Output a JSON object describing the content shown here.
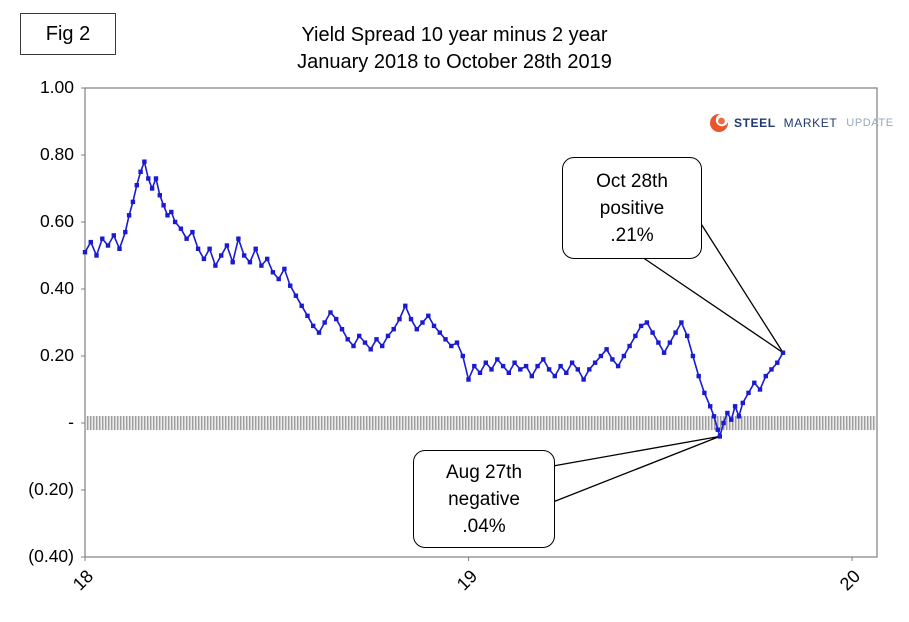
{
  "fig_label": "Fig 2",
  "title": {
    "line1": "Yield Spread 10 year minus 2 year",
    "line2": "January 2018 to October 28th 2019"
  },
  "logo": {
    "word1": "STEEL",
    "word2": "MARKET",
    "word3": "UPDATE",
    "orange": "#e8552b",
    "navy": "#1f3a6e",
    "gray": "#94a8bf"
  },
  "chart_data": {
    "type": "line",
    "title": "Yield Spread 10 year minus 2 year, January 2018 to October 28th 2019",
    "xlabel": "",
    "ylabel": "",
    "xlim": [
      18,
      20.065
    ],
    "ylim": [
      -0.4,
      1.0
    ],
    "grid": false,
    "legend": "none",
    "zero_band": true,
    "colors": {
      "line": "#1a1ad2",
      "band": "#9e9e9e"
    },
    "yticks": [
      {
        "label": "1.00",
        "value": 1.0
      },
      {
        "label": "0.80",
        "value": 0.8
      },
      {
        "label": "0.60",
        "value": 0.6
      },
      {
        "label": "0.40",
        "value": 0.4
      },
      {
        "label": "0.20",
        "value": 0.2
      },
      {
        "label": "-",
        "value": 0.0
      },
      {
        "label": "(0.20)",
        "value": -0.2
      },
      {
        "label": "(0.40)",
        "value": -0.4
      }
    ],
    "xticks": [
      {
        "label": "18",
        "value": 18
      },
      {
        "label": "19",
        "value": 19
      },
      {
        "label": "20",
        "value": 20
      }
    ],
    "series": [
      {
        "name": "Yield spread 10yr minus 2yr (%)",
        "marker": "square",
        "points": [
          [
            18.0,
            0.51
          ],
          [
            18.015,
            0.54
          ],
          [
            18.03,
            0.5
          ],
          [
            18.045,
            0.55
          ],
          [
            18.06,
            0.53
          ],
          [
            18.075,
            0.56
          ],
          [
            18.09,
            0.52
          ],
          [
            18.105,
            0.57
          ],
          [
            18.115,
            0.62
          ],
          [
            18.125,
            0.66
          ],
          [
            18.135,
            0.71
          ],
          [
            18.145,
            0.75
          ],
          [
            18.155,
            0.78
          ],
          [
            18.165,
            0.73
          ],
          [
            18.175,
            0.7
          ],
          [
            18.185,
            0.73
          ],
          [
            18.195,
            0.68
          ],
          [
            18.205,
            0.65
          ],
          [
            18.215,
            0.62
          ],
          [
            18.225,
            0.63
          ],
          [
            18.235,
            0.6
          ],
          [
            18.25,
            0.58
          ],
          [
            18.265,
            0.55
          ],
          [
            18.28,
            0.57
          ],
          [
            18.295,
            0.52
          ],
          [
            18.31,
            0.49
          ],
          [
            18.325,
            0.52
          ],
          [
            18.34,
            0.47
          ],
          [
            18.355,
            0.5
          ],
          [
            18.37,
            0.53
          ],
          [
            18.385,
            0.48
          ],
          [
            18.4,
            0.55
          ],
          [
            18.415,
            0.5
          ],
          [
            18.43,
            0.48
          ],
          [
            18.445,
            0.52
          ],
          [
            18.46,
            0.47
          ],
          [
            18.475,
            0.49
          ],
          [
            18.49,
            0.45
          ],
          [
            18.505,
            0.43
          ],
          [
            18.52,
            0.46
          ],
          [
            18.535,
            0.41
          ],
          [
            18.55,
            0.38
          ],
          [
            18.565,
            0.35
          ],
          [
            18.58,
            0.32
          ],
          [
            18.595,
            0.29
          ],
          [
            18.61,
            0.27
          ],
          [
            18.625,
            0.3
          ],
          [
            18.64,
            0.33
          ],
          [
            18.655,
            0.31
          ],
          [
            18.67,
            0.28
          ],
          [
            18.685,
            0.25
          ],
          [
            18.7,
            0.23
          ],
          [
            18.715,
            0.26
          ],
          [
            18.73,
            0.24
          ],
          [
            18.745,
            0.22
          ],
          [
            18.76,
            0.25
          ],
          [
            18.775,
            0.23
          ],
          [
            18.79,
            0.26
          ],
          [
            18.805,
            0.28
          ],
          [
            18.82,
            0.31
          ],
          [
            18.835,
            0.35
          ],
          [
            18.85,
            0.31
          ],
          [
            18.865,
            0.28
          ],
          [
            18.88,
            0.3
          ],
          [
            18.895,
            0.32
          ],
          [
            18.91,
            0.29
          ],
          [
            18.925,
            0.27
          ],
          [
            18.94,
            0.25
          ],
          [
            18.955,
            0.23
          ],
          [
            18.97,
            0.24
          ],
          [
            18.985,
            0.2
          ],
          [
            19.0,
            0.13
          ],
          [
            19.015,
            0.17
          ],
          [
            19.03,
            0.15
          ],
          [
            19.045,
            0.18
          ],
          [
            19.06,
            0.16
          ],
          [
            19.075,
            0.19
          ],
          [
            19.09,
            0.17
          ],
          [
            19.105,
            0.15
          ],
          [
            19.12,
            0.18
          ],
          [
            19.135,
            0.16
          ],
          [
            19.15,
            0.17
          ],
          [
            19.165,
            0.14
          ],
          [
            19.18,
            0.17
          ],
          [
            19.195,
            0.19
          ],
          [
            19.21,
            0.16
          ],
          [
            19.225,
            0.14
          ],
          [
            19.24,
            0.17
          ],
          [
            19.255,
            0.15
          ],
          [
            19.27,
            0.18
          ],
          [
            19.285,
            0.16
          ],
          [
            19.3,
            0.13
          ],
          [
            19.315,
            0.16
          ],
          [
            19.33,
            0.18
          ],
          [
            19.345,
            0.2
          ],
          [
            19.36,
            0.22
          ],
          [
            19.375,
            0.19
          ],
          [
            19.39,
            0.17
          ],
          [
            19.405,
            0.2
          ],
          [
            19.42,
            0.23
          ],
          [
            19.435,
            0.26
          ],
          [
            19.45,
            0.29
          ],
          [
            19.465,
            0.3
          ],
          [
            19.48,
            0.27
          ],
          [
            19.495,
            0.24
          ],
          [
            19.51,
            0.21
          ],
          [
            19.525,
            0.24
          ],
          [
            19.54,
            0.27
          ],
          [
            19.555,
            0.3
          ],
          [
            19.57,
            0.26
          ],
          [
            19.585,
            0.2
          ],
          [
            19.6,
            0.14
          ],
          [
            19.615,
            0.09
          ],
          [
            19.63,
            0.05
          ],
          [
            19.64,
            0.02
          ],
          [
            19.65,
            -0.02
          ],
          [
            19.655,
            -0.04
          ],
          [
            19.665,
            0.0
          ],
          [
            19.675,
            0.03
          ],
          [
            19.685,
            0.01
          ],
          [
            19.695,
            0.05
          ],
          [
            19.705,
            0.02
          ],
          [
            19.715,
            0.06
          ],
          [
            19.73,
            0.09
          ],
          [
            19.745,
            0.12
          ],
          [
            19.76,
            0.1
          ],
          [
            19.775,
            0.14
          ],
          [
            19.79,
            0.16
          ],
          [
            19.805,
            0.18
          ],
          [
            19.82,
            0.21
          ]
        ]
      }
    ],
    "annotations": [
      {
        "lines": [
          "Oct 28th",
          "positive",
          ".21%"
        ],
        "target": [
          19.82,
          0.21
        ],
        "tail": "bottom"
      },
      {
        "lines": [
          "Aug 27th",
          "negative",
          ".04%"
        ],
        "target": [
          19.655,
          -0.04
        ],
        "tail": "right"
      }
    ]
  }
}
